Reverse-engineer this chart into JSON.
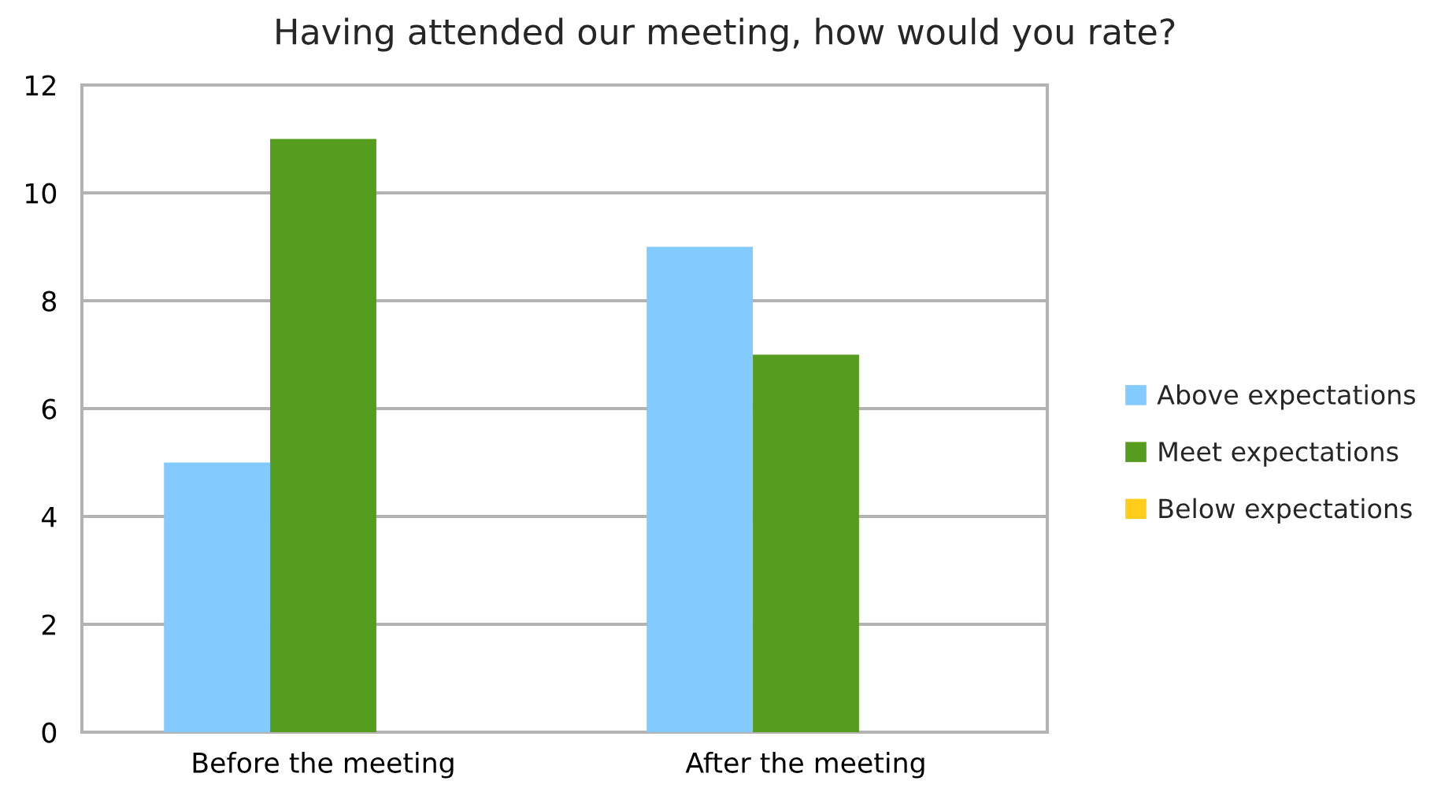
{
  "chart_data": {
    "type": "bar",
    "title": "Having attended our meeting, how would you rate?",
    "categories": [
      "Before the meeting",
      "After the meeting"
    ],
    "series": [
      {
        "name": "Above expectations",
        "color": "#83caff",
        "values": [
          5,
          9
        ]
      },
      {
        "name": "Meet expectations",
        "color": "#569c1e",
        "values": [
          11,
          7
        ]
      },
      {
        "name": "Below expectations",
        "color": "#ffcc1a",
        "values": [
          0,
          0
        ]
      }
    ],
    "ylim": [
      0,
      12
    ],
    "yticks": [
      0,
      2,
      4,
      6,
      8,
      10,
      12
    ],
    "grid": "y",
    "legend": "right"
  }
}
